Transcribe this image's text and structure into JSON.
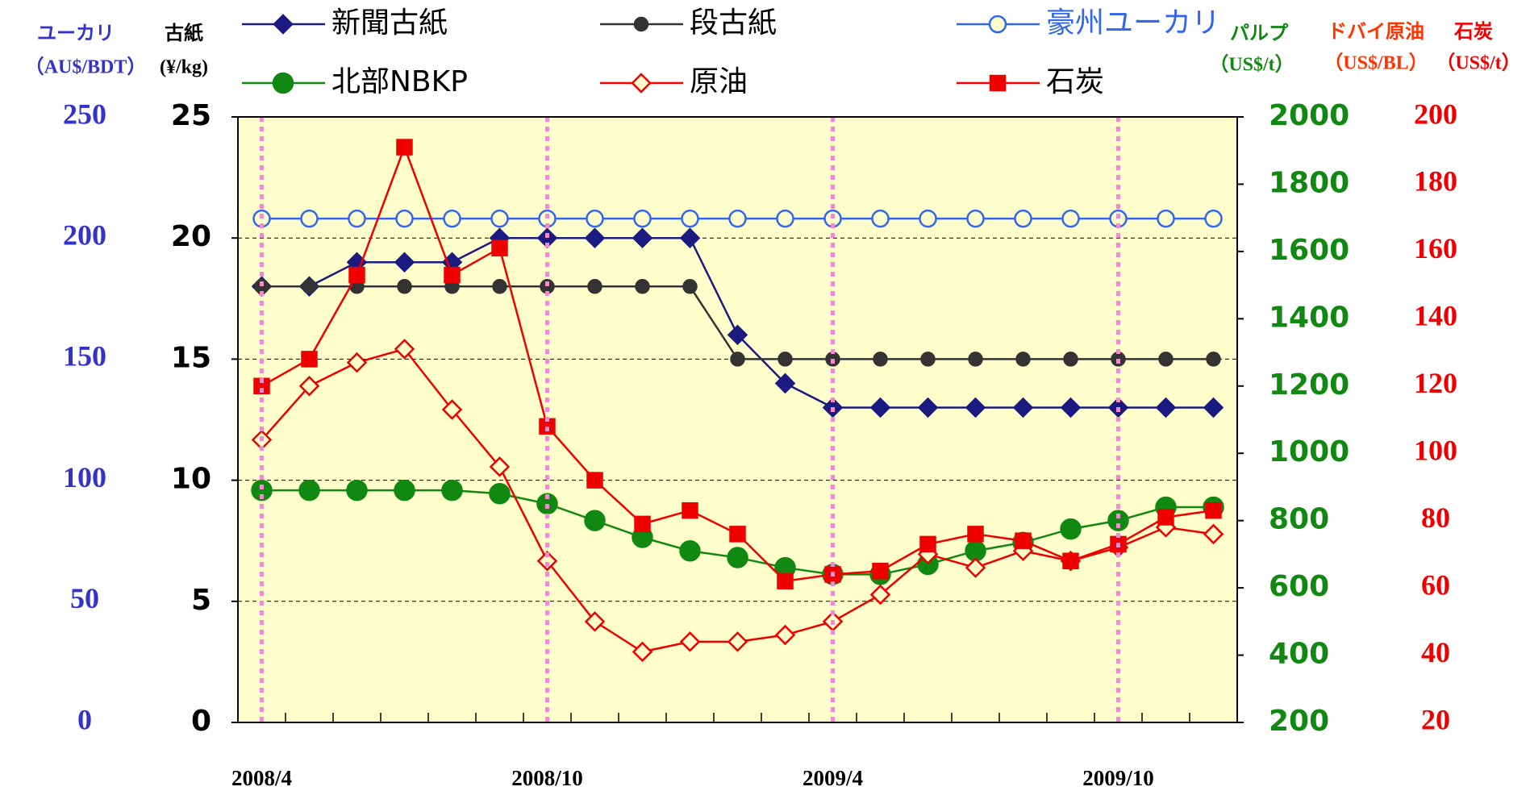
{
  "chart_data": {
    "type": "line",
    "categories": [
      "2008/4",
      null,
      null,
      null,
      null,
      null,
      "2008/10",
      null,
      null,
      null,
      null,
      null,
      "2009/4",
      null,
      null,
      null,
      null,
      null,
      "2009/10",
      null,
      null
    ],
    "axes": [
      {
        "title": "ユーカリ",
        "unit": "（AU$/BDT）",
        "lim": [
          0,
          250
        ],
        "ticks": [
          0,
          50,
          100,
          150,
          200,
          250
        ],
        "color": "#3333cc",
        "side": "left-outer"
      },
      {
        "title": "古紙",
        "unit": "(¥/kg)",
        "lim": [
          0,
          25
        ],
        "ticks": [
          0,
          5,
          10,
          15,
          20,
          25
        ],
        "color": "#000000",
        "side": "left",
        "grid": true
      },
      {
        "title": "パルプ",
        "unit": "（US$/t）",
        "lim": [
          200,
          2000
        ],
        "ticks": [
          200,
          400,
          600,
          800,
          1000,
          1200,
          1400,
          1600,
          1800,
          2000
        ],
        "color": "#118811",
        "side": "right"
      },
      {
        "title": "ドバイ原油",
        "title2": "石炭",
        "unit": "（US$/BL）",
        "unit2": "（US$/t）",
        "lim": [
          20,
          200
        ],
        "ticks": [
          20,
          40,
          60,
          80,
          100,
          120,
          140,
          160,
          180,
          200
        ],
        "color": "#ee0000",
        "side": "right-outer"
      }
    ],
    "series": [
      {
        "name": "新聞古紙",
        "color": "#1a1a80",
        "marker": "diamond",
        "filled": true,
        "axis": 1,
        "values": [
          18,
          18,
          19,
          19,
          19,
          20,
          20,
          20,
          20,
          20,
          16,
          14,
          13,
          13,
          13,
          13,
          13,
          13,
          13,
          13,
          13
        ]
      },
      {
        "name": "段古紙",
        "color": "#333333",
        "marker": "circle",
        "filled": true,
        "axis": 1,
        "values": [
          18,
          18,
          18,
          18,
          18,
          18,
          18,
          18,
          18,
          18,
          15,
          15,
          15,
          15,
          15,
          15,
          15,
          15,
          15,
          15,
          15
        ]
      },
      {
        "name": "豪州ユーカリ",
        "color": "#3366ee",
        "marker": "circle",
        "filled": false,
        "axis": 0,
        "values": [
          208,
          208,
          208,
          208,
          208,
          208,
          208,
          208,
          208,
          208,
          208,
          208,
          208,
          208,
          208,
          208,
          208,
          208,
          208,
          208,
          208
        ]
      },
      {
        "name": "北部NBKP",
        "color": "#118811",
        "marker": "bigcircle",
        "filled": true,
        "axis": 2,
        "values": [
          890,
          890,
          890,
          890,
          890,
          880,
          850,
          800,
          750,
          710,
          690,
          660,
          640,
          640,
          670,
          710,
          735,
          775,
          800,
          840,
          840
        ]
      },
      {
        "name": "原油",
        "color": "#ee0000",
        "marker": "diamond",
        "filled": false,
        "axis": 3,
        "values": [
          104,
          120,
          127,
          131,
          113,
          96,
          68,
          50,
          41,
          44,
          44,
          46,
          50,
          58,
          70,
          66,
          71,
          68,
          72,
          78,
          76
        ]
      },
      {
        "name": "石炭",
        "color": "#ee0000",
        "marker": "square",
        "filled": true,
        "axis": 3,
        "values": [
          120,
          128,
          153,
          191,
          153,
          161,
          108,
          92,
          79,
          83,
          76,
          62,
          64,
          65,
          73,
          76,
          74,
          68,
          73,
          81,
          83
        ]
      }
    ]
  }
}
